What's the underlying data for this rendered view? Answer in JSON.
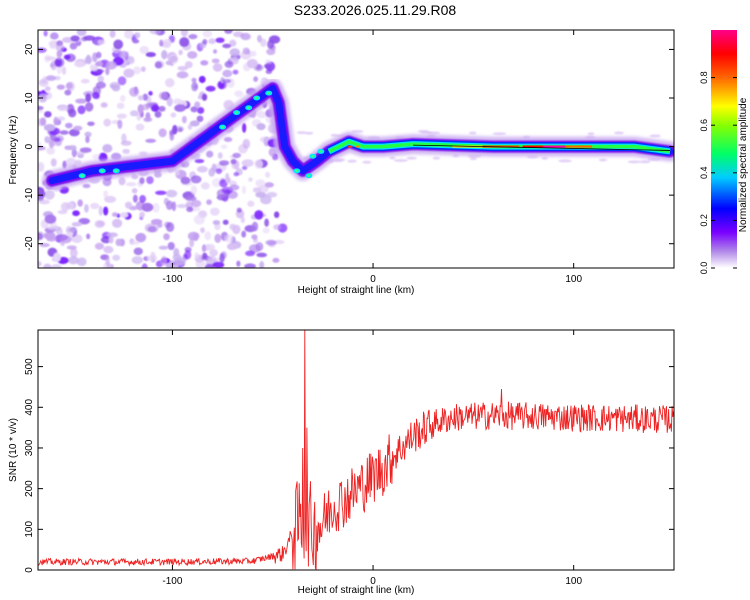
{
  "header": {
    "title": "S233.2026.025.11.29.R08"
  },
  "colors": {
    "snr_line": "#ee2222",
    "trace_line": "#000000"
  },
  "chart_data": [
    {
      "type": "heatmap",
      "title": "S233.2026.025.11.29.R08",
      "xlabel": "Height of straight line (km)",
      "ylabel": "Frequency (Hz)",
      "xlim": [
        -167,
        150
      ],
      "ylim": [
        -25,
        24
      ],
      "xticks": [
        -100,
        0,
        100
      ],
      "yticks": [
        -20,
        -10,
        0,
        10,
        20
      ],
      "colorbar": {
        "label": "Normalized spectral amplitude",
        "range": [
          0,
          1
        ],
        "ticks": [
          "0.0",
          "0.2",
          "0.4",
          "0.6",
          "0.8"
        ],
        "colormap": [
          "#ffffff",
          "#8a2be2",
          "#0000ff",
          "#00ffff",
          "#00ff00",
          "#ffff00",
          "#ff8800",
          "#ff0000",
          "#ff00aa"
        ]
      },
      "ridge": [
        {
          "x": -160,
          "y": -7
        },
        {
          "x": -140,
          "y": -5
        },
        {
          "x": -120,
          "y": -4
        },
        {
          "x": -100,
          "y": -3
        },
        {
          "x": -90,
          "y": 0
        },
        {
          "x": -80,
          "y": 3
        },
        {
          "x": -70,
          "y": 6
        },
        {
          "x": -60,
          "y": 9
        },
        {
          "x": -50,
          "y": 12
        },
        {
          "x": -47,
          "y": 9
        },
        {
          "x": -44,
          "y": 0
        },
        {
          "x": -40,
          "y": -3
        },
        {
          "x": -35,
          "y": -5
        },
        {
          "x": -28,
          "y": -3
        },
        {
          "x": -22,
          "y": -1
        },
        {
          "x": -12,
          "y": 1
        },
        {
          "x": -5,
          "y": 0
        },
        {
          "x": 5,
          "y": 0
        },
        {
          "x": 20,
          "y": 0.5
        },
        {
          "x": 60,
          "y": 0
        },
        {
          "x": 100,
          "y": 0
        },
        {
          "x": 130,
          "y": 0
        },
        {
          "x": 148,
          "y": -1
        }
      ]
    },
    {
      "type": "line",
      "xlabel": "Height of straight line (km)",
      "ylabel": "SNR (10 * v/v)",
      "xlim": [
        -167,
        150
      ],
      "ylim": [
        0,
        590
      ],
      "xticks": [
        -100,
        0,
        100
      ],
      "yticks": [
        0,
        100,
        200,
        300,
        400,
        500
      ],
      "trend": [
        {
          "x": -167,
          "y": 20
        },
        {
          "x": -100,
          "y": 20
        },
        {
          "x": -60,
          "y": 22
        },
        {
          "x": -45,
          "y": 40
        },
        {
          "x": -38,
          "y": 110
        },
        {
          "x": -34,
          "y": 130
        },
        {
          "x": -30,
          "y": 100
        },
        {
          "x": -25,
          "y": 120
        },
        {
          "x": -20,
          "y": 160
        },
        {
          "x": -15,
          "y": 170
        },
        {
          "x": -10,
          "y": 190
        },
        {
          "x": -5,
          "y": 210
        },
        {
          "x": 0,
          "y": 230
        },
        {
          "x": 5,
          "y": 250
        },
        {
          "x": 10,
          "y": 280
        },
        {
          "x": 20,
          "y": 330
        },
        {
          "x": 30,
          "y": 360
        },
        {
          "x": 40,
          "y": 375
        },
        {
          "x": 60,
          "y": 380
        },
        {
          "x": 100,
          "y": 375
        },
        {
          "x": 150,
          "y": 370
        }
      ],
      "spikes": [
        {
          "x": -34,
          "y": 590
        },
        {
          "x": -35,
          "y": 300
        },
        {
          "x": -33,
          "y": 350
        },
        {
          "x": 64,
          "y": 445
        }
      ]
    }
  ]
}
